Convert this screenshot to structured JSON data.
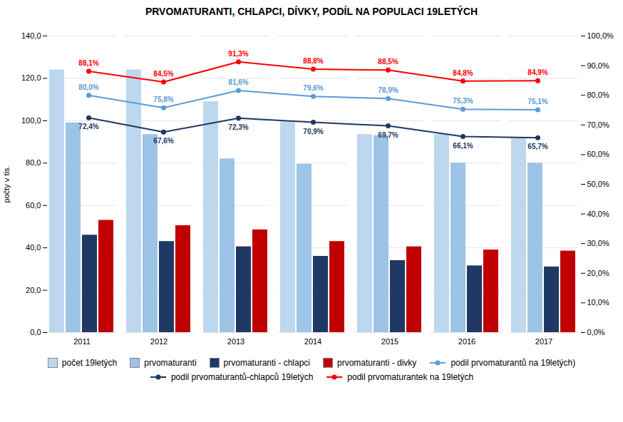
{
  "chart_data": {
    "type": "bar",
    "title": "PRVOMATURANTI, CHLAPCI, DÍVKY, PODÍL NA POPULACI 19LETÝCH",
    "categories": [
      "2011",
      "2012",
      "2013",
      "2014",
      "2015",
      "2016",
      "2017"
    ],
    "ylabel": "počty v tis.",
    "ylim": [
      0,
      140
    ],
    "yticks": [
      {
        "value": 0,
        "label": "0,0"
      },
      {
        "value": 20,
        "label": "20,0"
      },
      {
        "value": 40,
        "label": "40,0"
      },
      {
        "value": 60,
        "label": "60,0"
      },
      {
        "value": 80,
        "label": "80,0"
      },
      {
        "value": 100,
        "label": "100,0"
      },
      {
        "value": 120,
        "label": "120,0"
      },
      {
        "value": 140,
        "label": "140,0"
      }
    ],
    "y2lim": [
      0,
      100
    ],
    "y2ticks": [
      {
        "value": 0,
        "label": "0,0%"
      },
      {
        "value": 10,
        "label": "10,0%"
      },
      {
        "value": 20,
        "label": "20,0%"
      },
      {
        "value": 30,
        "label": "30,0%"
      },
      {
        "value": 40,
        "label": "40,0%"
      },
      {
        "value": 50,
        "label": "50,0%"
      },
      {
        "value": 60,
        "label": "60,0%"
      },
      {
        "value": 70,
        "label": "70,0%"
      },
      {
        "value": 80,
        "label": "80,0%"
      },
      {
        "value": 90,
        "label": "90,0%"
      },
      {
        "value": 100,
        "label": "100,0%"
      }
    ],
    "grid": true,
    "legend": "bottom",
    "series": [
      {
        "name": "počet 19letých",
        "color": "#bdd7ee",
        "values": [
          124.0,
          124.0,
          109.0,
          99.5,
          93.5,
          93.5,
          92.0
        ]
      },
      {
        "name": "prvomaturanti",
        "color": "#9dc3e6",
        "values": [
          99.0,
          93.5,
          82.0,
          79.5,
          93.0,
          80.0,
          80.0
        ]
      },
      {
        "name": "prvomaturanti - chlapci",
        "color": "#1f3864",
        "values": [
          46.0,
          43.0,
          40.5,
          36.0,
          34.0,
          31.5,
          31.0
        ]
      },
      {
        "name": "prvomaturanti - divky",
        "color": "#c00000",
        "values": [
          53.0,
          50.5,
          48.5,
          43.0,
          40.5,
          39.0,
          38.5
        ]
      },
      {
        "name": "podil prvomaturantů na 19letých)",
        "color": "#5b9bd5",
        "type": "line",
        "axis": "y2",
        "marker": "circle",
        "data_labels": true,
        "values": [
          80.0,
          75.8,
          81.6,
          79.6,
          78.9,
          75.3,
          75.1
        ],
        "value_labels": [
          "80,0%",
          "75,8%",
          "81,6%",
          "79,6%",
          "78,9%",
          "75,3%",
          "75,1%"
        ]
      },
      {
        "name": "podil prvomaturantů-chlapců 19letých",
        "color": "#1f3864",
        "type": "line",
        "axis": "y2",
        "marker": "circle",
        "data_labels": true,
        "values": [
          72.4,
          67.6,
          72.3,
          70.9,
          69.7,
          66.1,
          65.7
        ],
        "value_labels": [
          "72,4%",
          "67,6%",
          "72,3%",
          "70,9%",
          "69,7%",
          "66,1%",
          "65,7%"
        ]
      },
      {
        "name": "podil prvomaturantek na 19letých",
        "color": "#ff0000",
        "type": "line",
        "axis": "y2",
        "marker": "circle",
        "data_labels": true,
        "values": [
          88.1,
          84.5,
          91.3,
          88.8,
          88.5,
          84.8,
          84.9
        ],
        "value_labels": [
          "88,1%",
          "84,5%",
          "91,3%",
          "88,8%",
          "88,5%",
          "84,8%",
          "84,9%"
        ]
      }
    ]
  }
}
